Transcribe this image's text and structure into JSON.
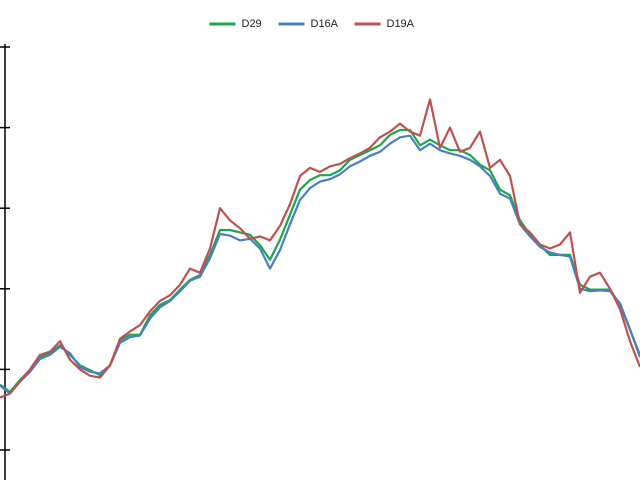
{
  "chart_data": {
    "type": "line",
    "x": [
      0,
      1,
      2,
      3,
      4,
      5,
      6,
      7,
      8,
      9,
      10,
      11,
      12,
      13,
      14,
      15,
      16,
      17,
      18,
      19,
      20,
      21,
      22,
      23,
      24,
      25,
      26,
      27,
      28,
      29,
      30,
      31,
      32,
      33,
      34,
      35,
      36,
      37,
      38,
      39,
      40,
      41,
      42,
      43,
      44,
      45,
      46,
      47,
      48,
      49,
      50,
      51,
      52,
      53,
      54,
      55,
      56,
      57,
      58,
      59,
      60,
      61,
      62,
      63,
      64
    ],
    "xlim": [
      0,
      64
    ],
    "ylim": [
      0,
      5
    ],
    "yticks": [
      0,
      1,
      2,
      3,
      4,
      5
    ],
    "legend": "top",
    "series": [
      {
        "name": "D29",
        "color": "#1aa64a",
        "values": [
          0.81,
          0.72,
          0.87,
          0.99,
          1.15,
          1.2,
          1.3,
          1.18,
          1.05,
          0.99,
          0.93,
          1.05,
          1.36,
          1.43,
          1.43,
          1.67,
          1.8,
          1.86,
          1.99,
          2.11,
          2.17,
          2.42,
          2.73,
          2.73,
          2.7,
          2.67,
          2.54,
          2.36,
          2.61,
          2.92,
          3.23,
          3.35,
          3.41,
          3.41,
          3.47,
          3.6,
          3.66,
          3.72,
          3.78,
          3.91,
          3.97,
          3.97,
          3.78,
          3.85,
          3.78,
          3.72,
          3.72,
          3.66,
          3.54,
          3.47,
          3.23,
          3.16,
          2.85,
          2.67,
          2.54,
          2.42,
          2.42,
          2.42,
          2.05,
          1.99,
          1.99,
          1.99,
          1.8,
          1.49,
          1.18
        ]
      },
      {
        "name": "D16A",
        "color": "#4a7fc1",
        "values": [
          0.8,
          0.7,
          0.85,
          0.97,
          1.13,
          1.18,
          1.28,
          1.2,
          1.03,
          0.97,
          0.95,
          1.05,
          1.33,
          1.4,
          1.42,
          1.63,
          1.77,
          1.85,
          1.97,
          2.1,
          2.15,
          2.38,
          2.68,
          2.66,
          2.6,
          2.62,
          2.5,
          2.25,
          2.48,
          2.8,
          3.1,
          3.25,
          3.33,
          3.36,
          3.42,
          3.52,
          3.58,
          3.65,
          3.7,
          3.8,
          3.88,
          3.9,
          3.72,
          3.8,
          3.72,
          3.68,
          3.65,
          3.6,
          3.52,
          3.4,
          3.18,
          3.12,
          2.8,
          2.65,
          2.52,
          2.45,
          2.42,
          2.4,
          2.0,
          1.97,
          1.98,
          1.97,
          1.82,
          1.5,
          1.15
        ]
      },
      {
        "name": "D19A",
        "color": "#c0504d",
        "values": [
          0.65,
          0.7,
          0.85,
          1.0,
          1.18,
          1.22,
          1.35,
          1.12,
          1.0,
          0.92,
          0.9,
          1.05,
          1.38,
          1.47,
          1.55,
          1.72,
          1.85,
          1.92,
          2.05,
          2.25,
          2.2,
          2.5,
          3.0,
          2.85,
          2.75,
          2.62,
          2.65,
          2.6,
          2.78,
          3.05,
          3.4,
          3.5,
          3.45,
          3.52,
          3.55,
          3.62,
          3.68,
          3.75,
          3.88,
          3.95,
          4.05,
          3.95,
          3.9,
          4.35,
          3.75,
          4.0,
          3.7,
          3.75,
          3.95,
          3.5,
          3.6,
          3.4,
          2.8,
          2.7,
          2.55,
          2.5,
          2.55,
          2.7,
          1.95,
          2.15,
          2.2,
          2.0,
          1.75,
          1.35,
          1.03
        ]
      }
    ]
  }
}
